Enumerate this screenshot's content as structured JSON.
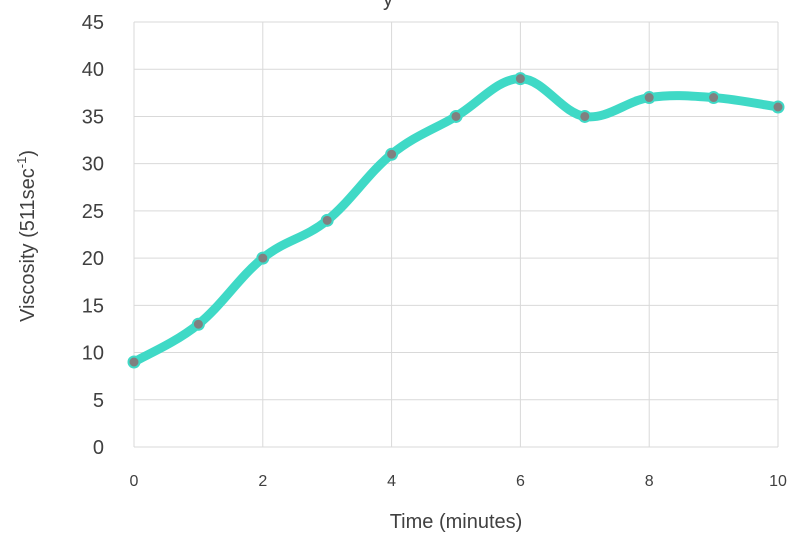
{
  "chart_data": {
    "type": "line",
    "title_fragment": "y",
    "xlabel": "Time (minutes)",
    "ylabel": {
      "prefix": "Viscosity (511sec",
      "superscript": "-1",
      "suffix": ")"
    },
    "xlim": [
      0,
      10
    ],
    "ylim": [
      0,
      45
    ],
    "x_ticks": [
      0,
      2,
      4,
      6,
      8,
      10
    ],
    "y_ticks": [
      0,
      5,
      10,
      15,
      20,
      25,
      30,
      35,
      40,
      45
    ],
    "grid": true,
    "smooth": true,
    "line_color": "#3fd9c6",
    "marker_color": "#808080",
    "series": [
      {
        "x": [
          0,
          1,
          2,
          3,
          4,
          5,
          6,
          7,
          8,
          9,
          10
        ],
        "y": [
          9,
          13,
          20,
          24,
          31,
          35,
          39,
          35,
          37,
          37,
          36
        ]
      }
    ]
  }
}
